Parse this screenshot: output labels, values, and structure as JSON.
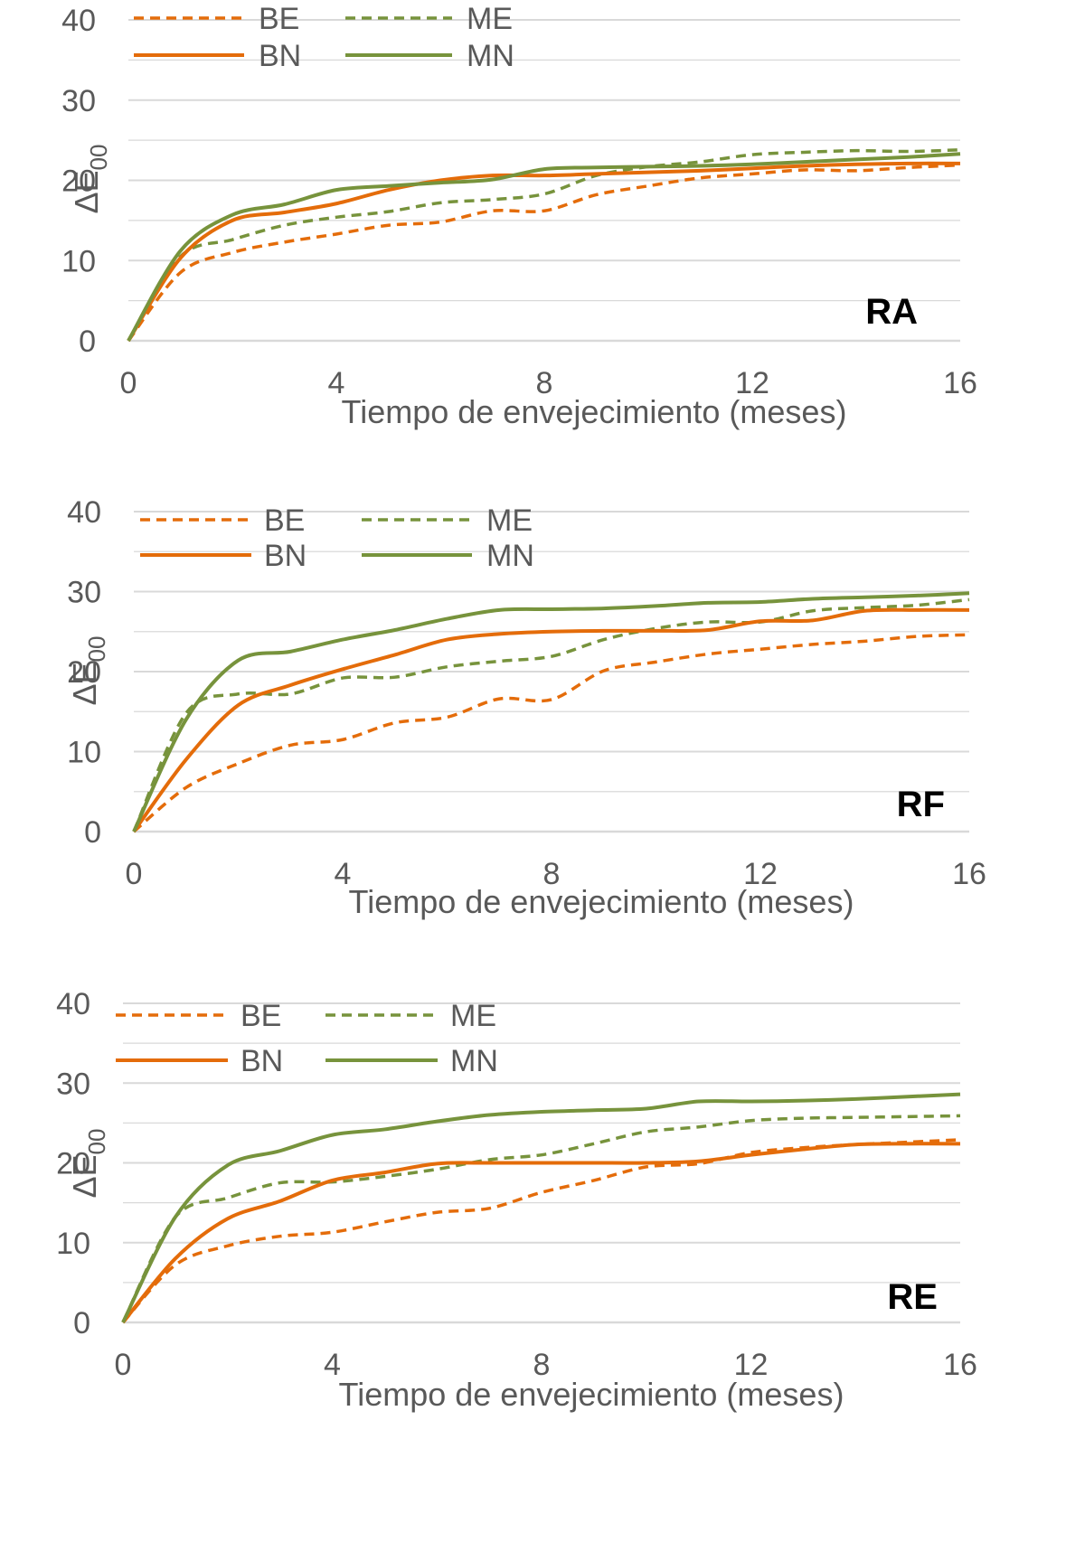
{
  "colors": {
    "orange": "#E46C0A",
    "green": "#77933C",
    "text": "#595959",
    "grid": "#D9D9D9",
    "label": "#000000"
  },
  "chart_data": [
    {
      "type": "line",
      "title": "RA",
      "xlabel": "Tiempo de envejecimiento (meses)",
      "ylabel": "ΔE",
      "ylabel_sub": "00",
      "xlim": [
        0,
        16
      ],
      "ylim": [
        0,
        40
      ],
      "xticks": [
        0,
        4,
        8,
        12,
        16
      ],
      "yticks": [
        0,
        10,
        20,
        30,
        40
      ],
      "x": [
        0,
        1,
        2,
        3,
        4,
        5,
        6,
        7,
        8,
        9,
        10,
        11,
        12,
        13,
        14,
        15,
        16
      ],
      "series": [
        {
          "name": "BE",
          "color": "#E46C0A",
          "dash": true,
          "values": [
            0,
            8.5,
            11,
            12.3,
            13.3,
            14.4,
            14.8,
            16.2,
            16.2,
            18.2,
            19.3,
            20.3,
            20.8,
            21.3,
            21.2,
            21.6,
            21.9
          ]
        },
        {
          "name": "ME",
          "color": "#77933C",
          "dash": true,
          "values": [
            0,
            10.5,
            12.6,
            14.4,
            15.4,
            16.1,
            17.2,
            17.6,
            18.3,
            20.6,
            21.7,
            22.3,
            23.2,
            23.5,
            23.7,
            23.6,
            23.8
          ]
        },
        {
          "name": "BN",
          "color": "#E46C0A",
          "dash": false,
          "values": [
            0,
            10.3,
            15,
            16,
            17.1,
            18.8,
            20,
            20.6,
            20.6,
            20.8,
            21,
            21.2,
            21.5,
            21.8,
            22,
            22.1,
            22.1
          ]
        },
        {
          "name": "MN",
          "color": "#77933C",
          "dash": false,
          "values": [
            0,
            11.2,
            15.7,
            17,
            18.8,
            19.3,
            19.7,
            20.1,
            21.4,
            21.6,
            21.7,
            21.8,
            22,
            22.3,
            22.6,
            22.9,
            23.3
          ]
        }
      ]
    },
    {
      "type": "line",
      "title": "RF",
      "xlabel": "Tiempo de envejecimiento (meses)",
      "ylabel": "ΔE",
      "ylabel_sub": "00",
      "xlim": [
        0,
        16
      ],
      "ylim": [
        0,
        40
      ],
      "xticks": [
        0,
        4,
        8,
        12,
        16
      ],
      "yticks": [
        0,
        10,
        20,
        30,
        40
      ],
      "x": [
        0,
        1,
        2,
        3,
        4,
        5,
        6,
        7,
        8,
        9,
        10,
        11,
        12,
        13,
        14,
        15,
        16
      ],
      "series": [
        {
          "name": "BE",
          "color": "#E46C0A",
          "dash": true,
          "values": [
            0,
            5.5,
            8.5,
            10.8,
            11.5,
            13.6,
            14.3,
            16.6,
            16.5,
            20.1,
            21.2,
            22.2,
            22.8,
            23.4,
            23.8,
            24.4,
            24.6
          ]
        },
        {
          "name": "ME",
          "color": "#77933C",
          "dash": true,
          "values": [
            0,
            14.8,
            17.2,
            17.2,
            19.2,
            19.3,
            20.6,
            21.3,
            21.9,
            24,
            25.4,
            26.2,
            26.2,
            27.6,
            28,
            28.3,
            29
          ]
        },
        {
          "name": "BN",
          "color": "#E46C0A",
          "dash": false,
          "values": [
            0,
            9,
            15.8,
            18.3,
            20.3,
            22.1,
            24,
            24.7,
            25,
            25.1,
            25.1,
            25.2,
            26.3,
            26.4,
            27.6,
            27.7,
            27.7
          ]
        },
        {
          "name": "MN",
          "color": "#77933C",
          "dash": false,
          "values": [
            0,
            14,
            21.4,
            22.5,
            24,
            25.2,
            26.6,
            27.7,
            27.8,
            27.9,
            28.2,
            28.6,
            28.7,
            29.1,
            29.3,
            29.5,
            29.8
          ]
        }
      ]
    },
    {
      "type": "line",
      "title": "RE",
      "xlabel": "Tiempo de envejecimiento (meses)",
      "ylabel": "ΔE",
      "ylabel_sub": "00",
      "xlim": [
        0,
        16
      ],
      "ylim": [
        0,
        40
      ],
      "xticks": [
        0,
        4,
        8,
        12,
        16
      ],
      "yticks": [
        0,
        10,
        20,
        30,
        40
      ],
      "x": [
        0,
        1,
        2,
        3,
        4,
        5,
        6,
        7,
        8,
        9,
        10,
        11,
        12,
        13,
        14,
        15,
        16
      ],
      "series": [
        {
          "name": "BE",
          "color": "#E46C0A",
          "dash": true,
          "values": [
            0,
            7.2,
            9.6,
            10.8,
            11.3,
            12.6,
            13.8,
            14.3,
            16.3,
            17.8,
            19.5,
            19.9,
            21.3,
            21.9,
            22.3,
            22.6,
            22.9
          ]
        },
        {
          "name": "ME",
          "color": "#77933C",
          "dash": true,
          "values": [
            0,
            13.2,
            15.6,
            17.5,
            17.6,
            18.3,
            19.2,
            20.4,
            21,
            22.4,
            23.9,
            24.5,
            25.3,
            25.6,
            25.7,
            25.8,
            25.9
          ]
        },
        {
          "name": "BN",
          "color": "#E46C0A",
          "dash": false,
          "values": [
            0,
            8,
            13,
            15.2,
            17.8,
            18.8,
            19.9,
            20,
            20,
            20,
            20,
            20.2,
            21,
            21.7,
            22.3,
            22.4,
            22.4
          ]
        },
        {
          "name": "MN",
          "color": "#77933C",
          "dash": false,
          "values": [
            0,
            13.2,
            19.7,
            21.5,
            23.5,
            24.2,
            25.2,
            26,
            26.4,
            26.6,
            26.8,
            27.7,
            27.7,
            27.8,
            28,
            28.3,
            28.6
          ]
        }
      ]
    }
  ]
}
